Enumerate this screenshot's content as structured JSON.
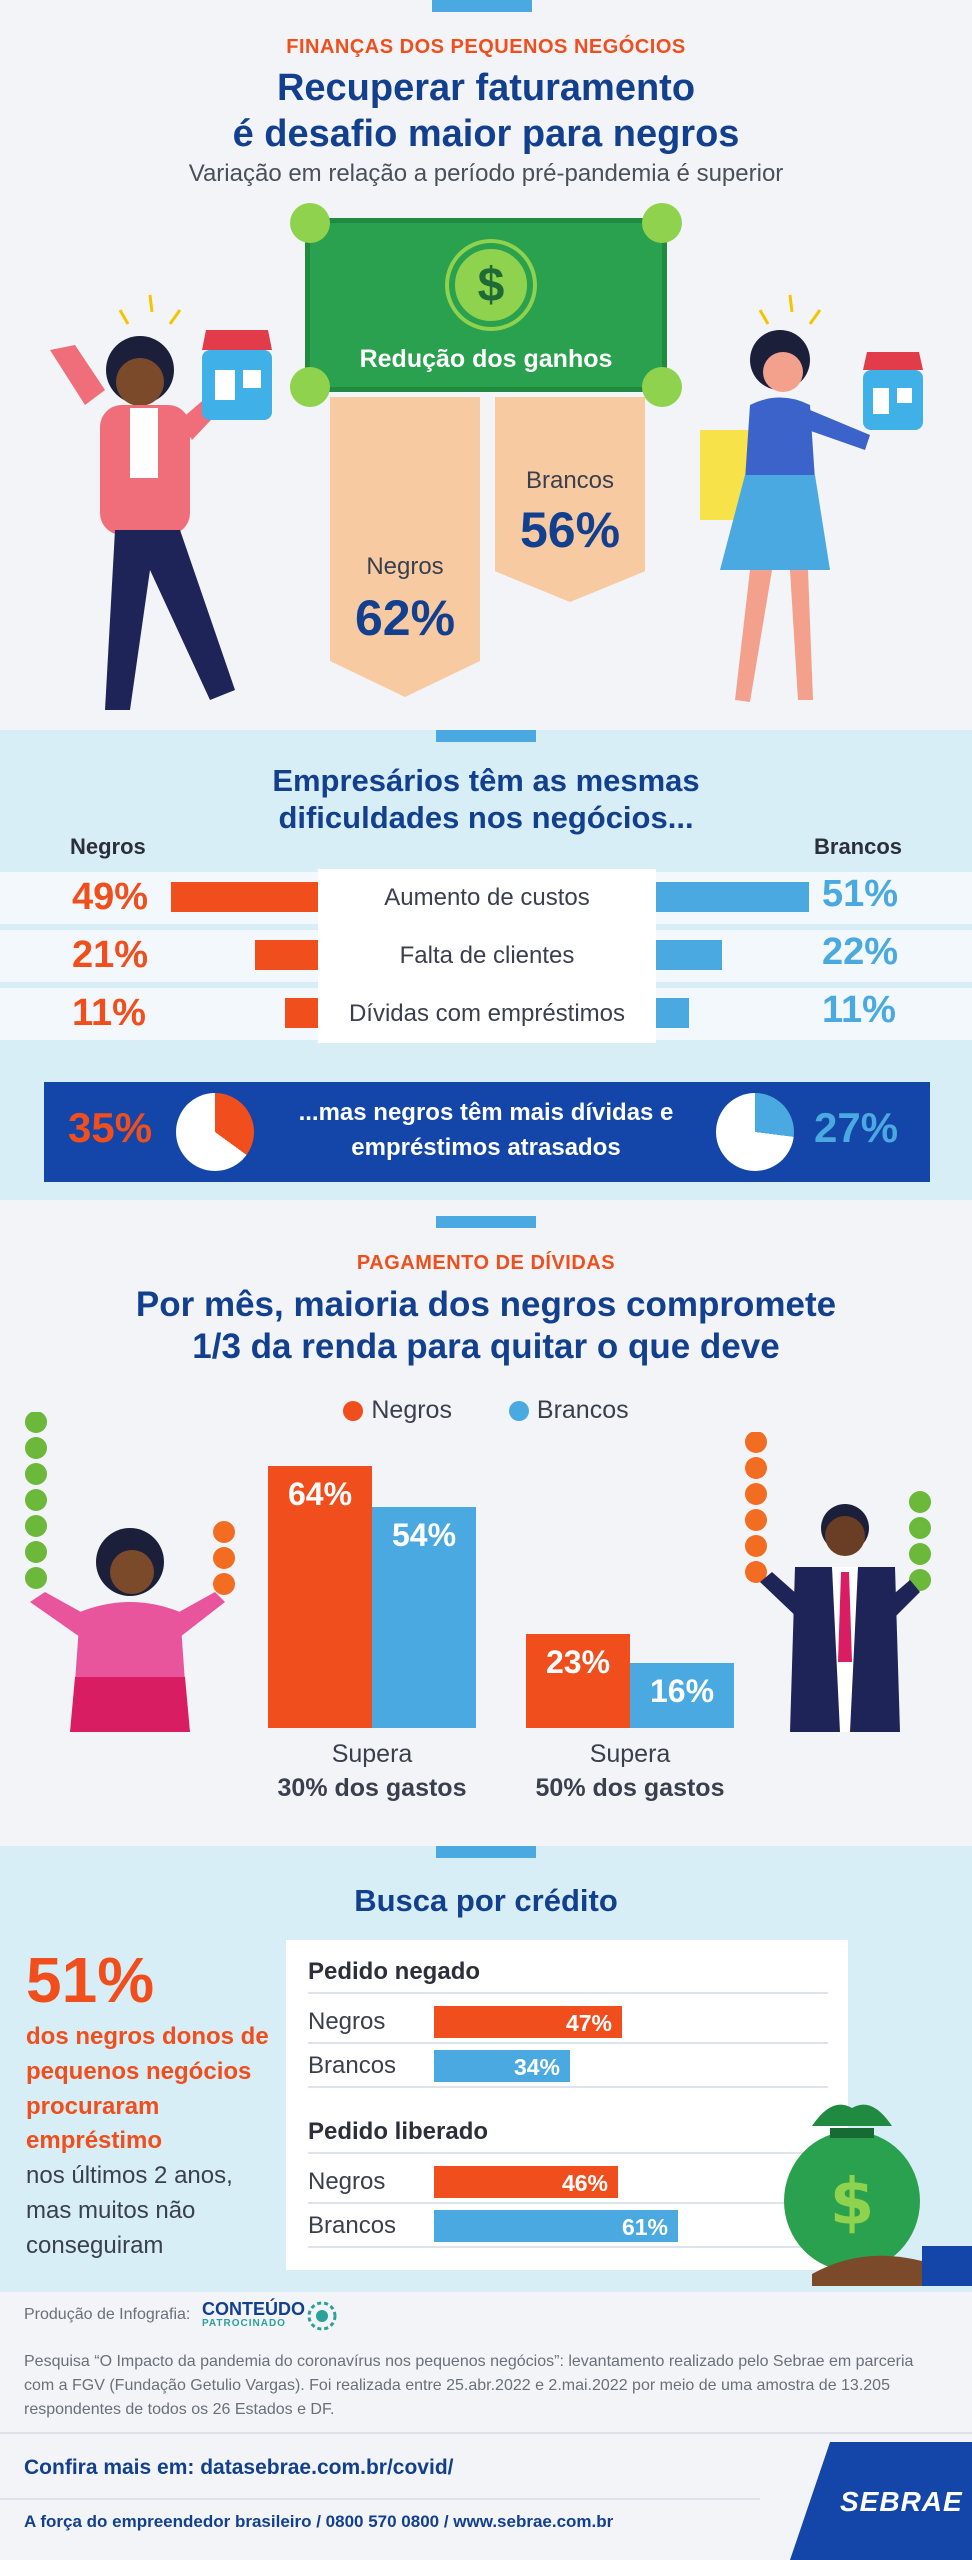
{
  "header": {
    "kicker": "FINANÇAS DOS PEQUENOS NEGÓCIOS",
    "title_line1": "Recuperar faturamento",
    "title_line2": "é desafio maior para negros",
    "subtitle": "Variação em relação a período pré-pandemia é superior"
  },
  "revenue": {
    "bill_symbol": "$",
    "bill_label": "Redução dos ganhos",
    "negros_label": "Negros",
    "negros_value": "62%",
    "brancos_label": "Brancos",
    "brancos_value": "56%"
  },
  "difficulties": {
    "title_line1": "Empresários têm as mesmas",
    "title_line2": "dificuldades nos negócios...",
    "col_left": "Negros",
    "col_right": "Brancos",
    "rows": [
      {
        "label": "Aumento de custos",
        "negros": "49%",
        "brancos": "51%",
        "negros_num": 49,
        "brancos_num": 51
      },
      {
        "label": "Falta de clientes",
        "negros": "21%",
        "brancos": "22%",
        "negros_num": 21,
        "brancos_num": 22
      },
      {
        "label": "Dívidas com empréstimos",
        "negros": "11%",
        "brancos": "11%",
        "negros_num": 11,
        "brancos_num": 11
      }
    ],
    "debt": {
      "text_line1": "...mas negros têm mais dívidas e",
      "text_line2": "empréstimos atrasados",
      "negros": "35%",
      "brancos": "27%",
      "negros_num": 35,
      "brancos_num": 27
    }
  },
  "payment": {
    "kicker": "PAGAMENTO DE DÍVIDAS",
    "title_line1": "Por mês, maioria dos negros compromete",
    "title_line2": "1/3 da renda para quitar o que deve",
    "legend_negros": "Negros",
    "legend_brancos": "Brancos",
    "coin_symbol": "$",
    "chart_data": {
      "type": "bar",
      "categories": [
        "Supera 30% dos gastos",
        "Supera 50% dos gastos"
      ],
      "series": [
        {
          "name": "Negros",
          "values": [
            64,
            23
          ]
        },
        {
          "name": "Brancos",
          "values": [
            54,
            16
          ]
        }
      ],
      "ylim": [
        0,
        70
      ]
    },
    "groups": [
      {
        "line1": "Supera",
        "line2": "30% dos gastos",
        "negros": "64%",
        "brancos": "54%"
      },
      {
        "line1": "Supera",
        "line2": "50% dos gastos",
        "negros": "23%",
        "brancos": "16%"
      }
    ]
  },
  "credit": {
    "title": "Busca por crédito",
    "stat": "51%",
    "stat_bold": "dos negros donos de pequenos negócios procuraram empréstimo",
    "stat_rest": "nos últimos 2 anos, mas muitos não conseguiram",
    "money_symbol": "$",
    "denied": {
      "title": "Pedido negado",
      "negros_label": "Negros",
      "negros": "47%",
      "negros_num": 47,
      "brancos_label": "Brancos",
      "brancos": "34%",
      "brancos_num": 34
    },
    "approved": {
      "title": "Pedido liberado",
      "negros_label": "Negros",
      "negros": "46%",
      "negros_num": 46,
      "brancos_label": "Brancos",
      "brancos": "61%",
      "brancos_num": 61
    }
  },
  "footer": {
    "production_label": "Produção de Infografia:",
    "partner_line1": "CONTEÚDO",
    "partner_line2": "PATROCINADO",
    "source": "Pesquisa “O Impacto da pandemia do coronavírus nos pequenos negócios”: levantamento realizado pelo Sebrae em parceria com a FGV (Fundação Getulio Vargas). Foi realizada entre 25.abr.2022 e 2.mai.2022 por meio de uma amostra de 13.205 respondentes de todos os 26 Estados e DF.",
    "more": "Confira mais em: datasebrae.com.br/covid/",
    "tagline": "A força do empreendedor brasileiro / 0800 570 0800 / www.sebrae.com.br",
    "brand": "SEBRAE"
  },
  "colors": {
    "navy": "#12408f",
    "orange": "#f04e1c",
    "blue": "#4aa9e0",
    "green": "#2aa14e"
  }
}
